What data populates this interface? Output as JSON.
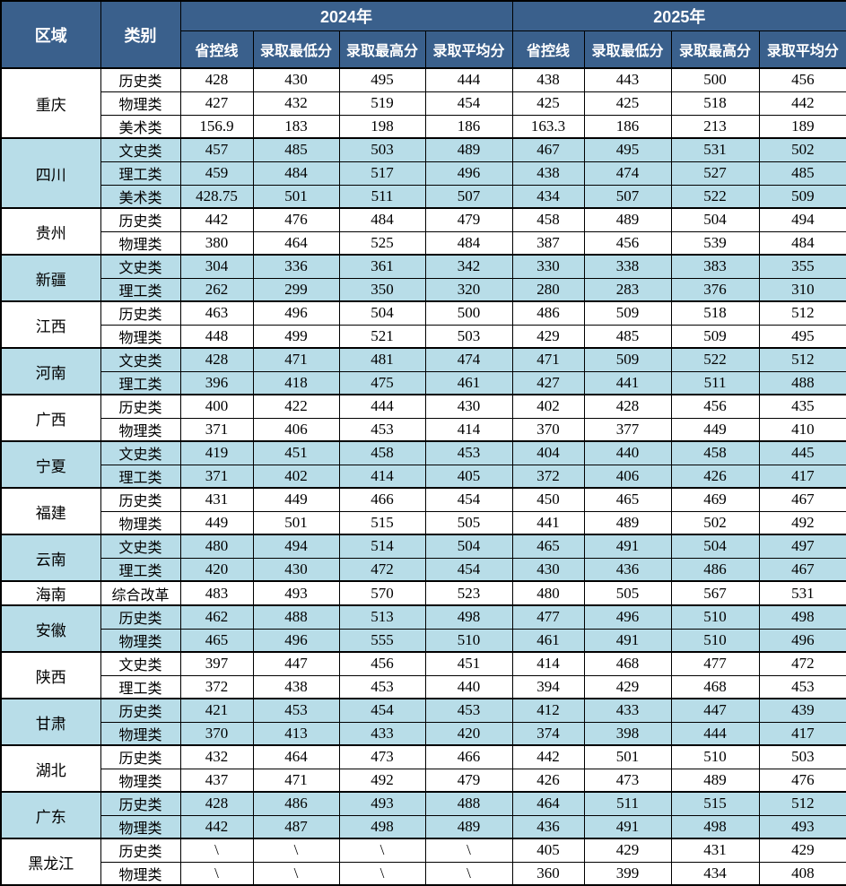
{
  "colors": {
    "header_bg": "#3A608C",
    "header_text": "#FFFFFF",
    "row_alt_bg": "#B8DDE8",
    "row_bg": "#FFFFFF",
    "border_color": "#000000",
    "body_text": "#000000"
  },
  "header": {
    "region_label": "区域",
    "category_label": "类别",
    "years": [
      "2024年",
      "2025年"
    ],
    "sub_columns": [
      "省控线",
      "录取最低分",
      "录取最高分",
      "录取平均分"
    ]
  },
  "regions": [
    {
      "name": "重庆",
      "rows": [
        {
          "category": "历史类",
          "y2024": [
            "428",
            "430",
            "495",
            "444"
          ],
          "y2025": [
            "438",
            "443",
            "500",
            "456"
          ]
        },
        {
          "category": "物理类",
          "y2024": [
            "427",
            "432",
            "519",
            "454"
          ],
          "y2025": [
            "425",
            "425",
            "518",
            "442"
          ]
        },
        {
          "category": "美术类",
          "y2024": [
            "156.9",
            "183",
            "198",
            "186"
          ],
          "y2025": [
            "163.3",
            "186",
            "213",
            "189"
          ]
        }
      ]
    },
    {
      "name": "四川",
      "rows": [
        {
          "category": "文史类",
          "y2024": [
            "457",
            "485",
            "503",
            "489"
          ],
          "y2025": [
            "467",
            "495",
            "531",
            "502"
          ]
        },
        {
          "category": "理工类",
          "y2024": [
            "459",
            "484",
            "517",
            "496"
          ],
          "y2025": [
            "438",
            "474",
            "527",
            "485"
          ]
        },
        {
          "category": "美术类",
          "y2024": [
            "428.75",
            "501",
            "511",
            "507"
          ],
          "y2025": [
            "434",
            "507",
            "522",
            "509"
          ]
        }
      ]
    },
    {
      "name": "贵州",
      "rows": [
        {
          "category": "历史类",
          "y2024": [
            "442",
            "476",
            "484",
            "479"
          ],
          "y2025": [
            "458",
            "489",
            "504",
            "494"
          ]
        },
        {
          "category": "物理类",
          "y2024": [
            "380",
            "464",
            "525",
            "484"
          ],
          "y2025": [
            "387",
            "456",
            "539",
            "484"
          ]
        }
      ]
    },
    {
      "name": "新疆",
      "rows": [
        {
          "category": "文史类",
          "y2024": [
            "304",
            "336",
            "361",
            "342"
          ],
          "y2025": [
            "330",
            "338",
            "383",
            "355"
          ]
        },
        {
          "category": "理工类",
          "y2024": [
            "262",
            "299",
            "350",
            "320"
          ],
          "y2025": [
            "280",
            "283",
            "376",
            "310"
          ]
        }
      ]
    },
    {
      "name": "江西",
      "rows": [
        {
          "category": "历史类",
          "y2024": [
            "463",
            "496",
            "504",
            "500"
          ],
          "y2025": [
            "486",
            "509",
            "518",
            "512"
          ]
        },
        {
          "category": "物理类",
          "y2024": [
            "448",
            "499",
            "521",
            "503"
          ],
          "y2025": [
            "429",
            "485",
            "509",
            "495"
          ]
        }
      ]
    },
    {
      "name": "河南",
      "rows": [
        {
          "category": "文史类",
          "y2024": [
            "428",
            "471",
            "481",
            "474"
          ],
          "y2025": [
            "471",
            "509",
            "522",
            "512"
          ]
        },
        {
          "category": "理工类",
          "y2024": [
            "396",
            "418",
            "475",
            "461"
          ],
          "y2025": [
            "427",
            "441",
            "511",
            "488"
          ]
        }
      ]
    },
    {
      "name": "广西",
      "rows": [
        {
          "category": "历史类",
          "y2024": [
            "400",
            "422",
            "444",
            "430"
          ],
          "y2025": [
            "402",
            "428",
            "456",
            "435"
          ]
        },
        {
          "category": "物理类",
          "y2024": [
            "371",
            "406",
            "453",
            "414"
          ],
          "y2025": [
            "370",
            "377",
            "449",
            "410"
          ]
        }
      ]
    },
    {
      "name": "宁夏",
      "rows": [
        {
          "category": "文史类",
          "y2024": [
            "419",
            "451",
            "458",
            "453"
          ],
          "y2025": [
            "404",
            "440",
            "458",
            "445"
          ]
        },
        {
          "category": "理工类",
          "y2024": [
            "371",
            "402",
            "414",
            "405"
          ],
          "y2025": [
            "372",
            "406",
            "426",
            "417"
          ]
        }
      ]
    },
    {
      "name": "福建",
      "rows": [
        {
          "category": "历史类",
          "y2024": [
            "431",
            "449",
            "466",
            "454"
          ],
          "y2025": [
            "450",
            "465",
            "469",
            "467"
          ]
        },
        {
          "category": "物理类",
          "y2024": [
            "449",
            "501",
            "515",
            "505"
          ],
          "y2025": [
            "441",
            "489",
            "502",
            "492"
          ]
        }
      ]
    },
    {
      "name": "云南",
      "rows": [
        {
          "category": "文史类",
          "y2024": [
            "480",
            "494",
            "514",
            "504"
          ],
          "y2025": [
            "465",
            "491",
            "504",
            "497"
          ]
        },
        {
          "category": "理工类",
          "y2024": [
            "420",
            "430",
            "472",
            "454"
          ],
          "y2025": [
            "430",
            "436",
            "486",
            "467"
          ]
        }
      ]
    },
    {
      "name": "海南",
      "rows": [
        {
          "category": "综合改革",
          "y2024": [
            "483",
            "493",
            "570",
            "523"
          ],
          "y2025": [
            "480",
            "505",
            "567",
            "531"
          ]
        }
      ]
    },
    {
      "name": "安徽",
      "rows": [
        {
          "category": "历史类",
          "y2024": [
            "462",
            "488",
            "513",
            "498"
          ],
          "y2025": [
            "477",
            "496",
            "510",
            "498"
          ]
        },
        {
          "category": "物理类",
          "y2024": [
            "465",
            "496",
            "555",
            "510"
          ],
          "y2025": [
            "461",
            "491",
            "510",
            "496"
          ]
        }
      ]
    },
    {
      "name": "陕西",
      "rows": [
        {
          "category": "文史类",
          "y2024": [
            "397",
            "447",
            "456",
            "451"
          ],
          "y2025": [
            "414",
            "468",
            "477",
            "472"
          ]
        },
        {
          "category": "理工类",
          "y2024": [
            "372",
            "438",
            "453",
            "440"
          ],
          "y2025": [
            "394",
            "429",
            "468",
            "453"
          ]
        }
      ]
    },
    {
      "name": "甘肃",
      "rows": [
        {
          "category": "历史类",
          "y2024": [
            "421",
            "453",
            "454",
            "453"
          ],
          "y2025": [
            "412",
            "433",
            "447",
            "439"
          ]
        },
        {
          "category": "物理类",
          "y2024": [
            "370",
            "413",
            "433",
            "420"
          ],
          "y2025": [
            "374",
            "398",
            "444",
            "417"
          ]
        }
      ]
    },
    {
      "name": "湖北",
      "rows": [
        {
          "category": "历史类",
          "y2024": [
            "432",
            "464",
            "473",
            "466"
          ],
          "y2025": [
            "442",
            "501",
            "510",
            "503"
          ]
        },
        {
          "category": "物理类",
          "y2024": [
            "437",
            "471",
            "492",
            "479"
          ],
          "y2025": [
            "426",
            "473",
            "489",
            "476"
          ]
        }
      ]
    },
    {
      "name": "广东",
      "rows": [
        {
          "category": "历史类",
          "y2024": [
            "428",
            "486",
            "493",
            "488"
          ],
          "y2025": [
            "464",
            "511",
            "515",
            "512"
          ]
        },
        {
          "category": "物理类",
          "y2024": [
            "442",
            "487",
            "498",
            "489"
          ],
          "y2025": [
            "436",
            "491",
            "498",
            "493"
          ]
        }
      ]
    },
    {
      "name": "黑龙江",
      "rows": [
        {
          "category": "历史类",
          "y2024": [
            "\\",
            "\\",
            "\\",
            "\\"
          ],
          "y2025": [
            "405",
            "429",
            "431",
            "429"
          ]
        },
        {
          "category": "物理类",
          "y2024": [
            "\\",
            "\\",
            "\\",
            "\\"
          ],
          "y2025": [
            "360",
            "399",
            "434",
            "408"
          ]
        }
      ]
    }
  ]
}
